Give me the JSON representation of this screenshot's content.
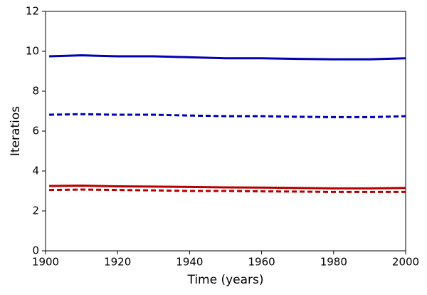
{
  "chart_data": {
    "type": "line",
    "xlabel": "Time (years)",
    "ylabel": "Iteratios",
    "x": [
      1901,
      1910,
      1920,
      1930,
      1940,
      1950,
      1960,
      1970,
      1980,
      1990,
      2000
    ],
    "series": [
      {
        "color": "#0000b4",
        "dashed": false,
        "values": [
          9.75,
          9.8,
          9.75,
          9.75,
          9.7,
          9.65,
          9.65,
          9.62,
          9.6,
          9.6,
          9.65
        ]
      },
      {
        "color": "#0000b4",
        "dashed": true,
        "values": [
          6.82,
          6.85,
          6.82,
          6.82,
          6.78,
          6.75,
          6.75,
          6.72,
          6.7,
          6.7,
          6.75
        ]
      },
      {
        "color": "#b40000",
        "dashed": false,
        "values": [
          3.25,
          3.27,
          3.23,
          3.22,
          3.2,
          3.18,
          3.17,
          3.15,
          3.13,
          3.13,
          3.15
        ]
      },
      {
        "color": "#b40000",
        "dashed": true,
        "values": [
          3.05,
          3.07,
          3.05,
          3.03,
          3.0,
          3.0,
          2.98,
          2.97,
          2.95,
          2.95,
          2.95
        ]
      }
    ],
    "xlim": [
      1900,
      2000
    ],
    "xticks": [
      1900,
      1920,
      1940,
      1960,
      1980,
      2000
    ],
    "ylim": [
      0,
      12
    ],
    "yticks": [
      0,
      2,
      4,
      6,
      8,
      10,
      12
    ]
  }
}
